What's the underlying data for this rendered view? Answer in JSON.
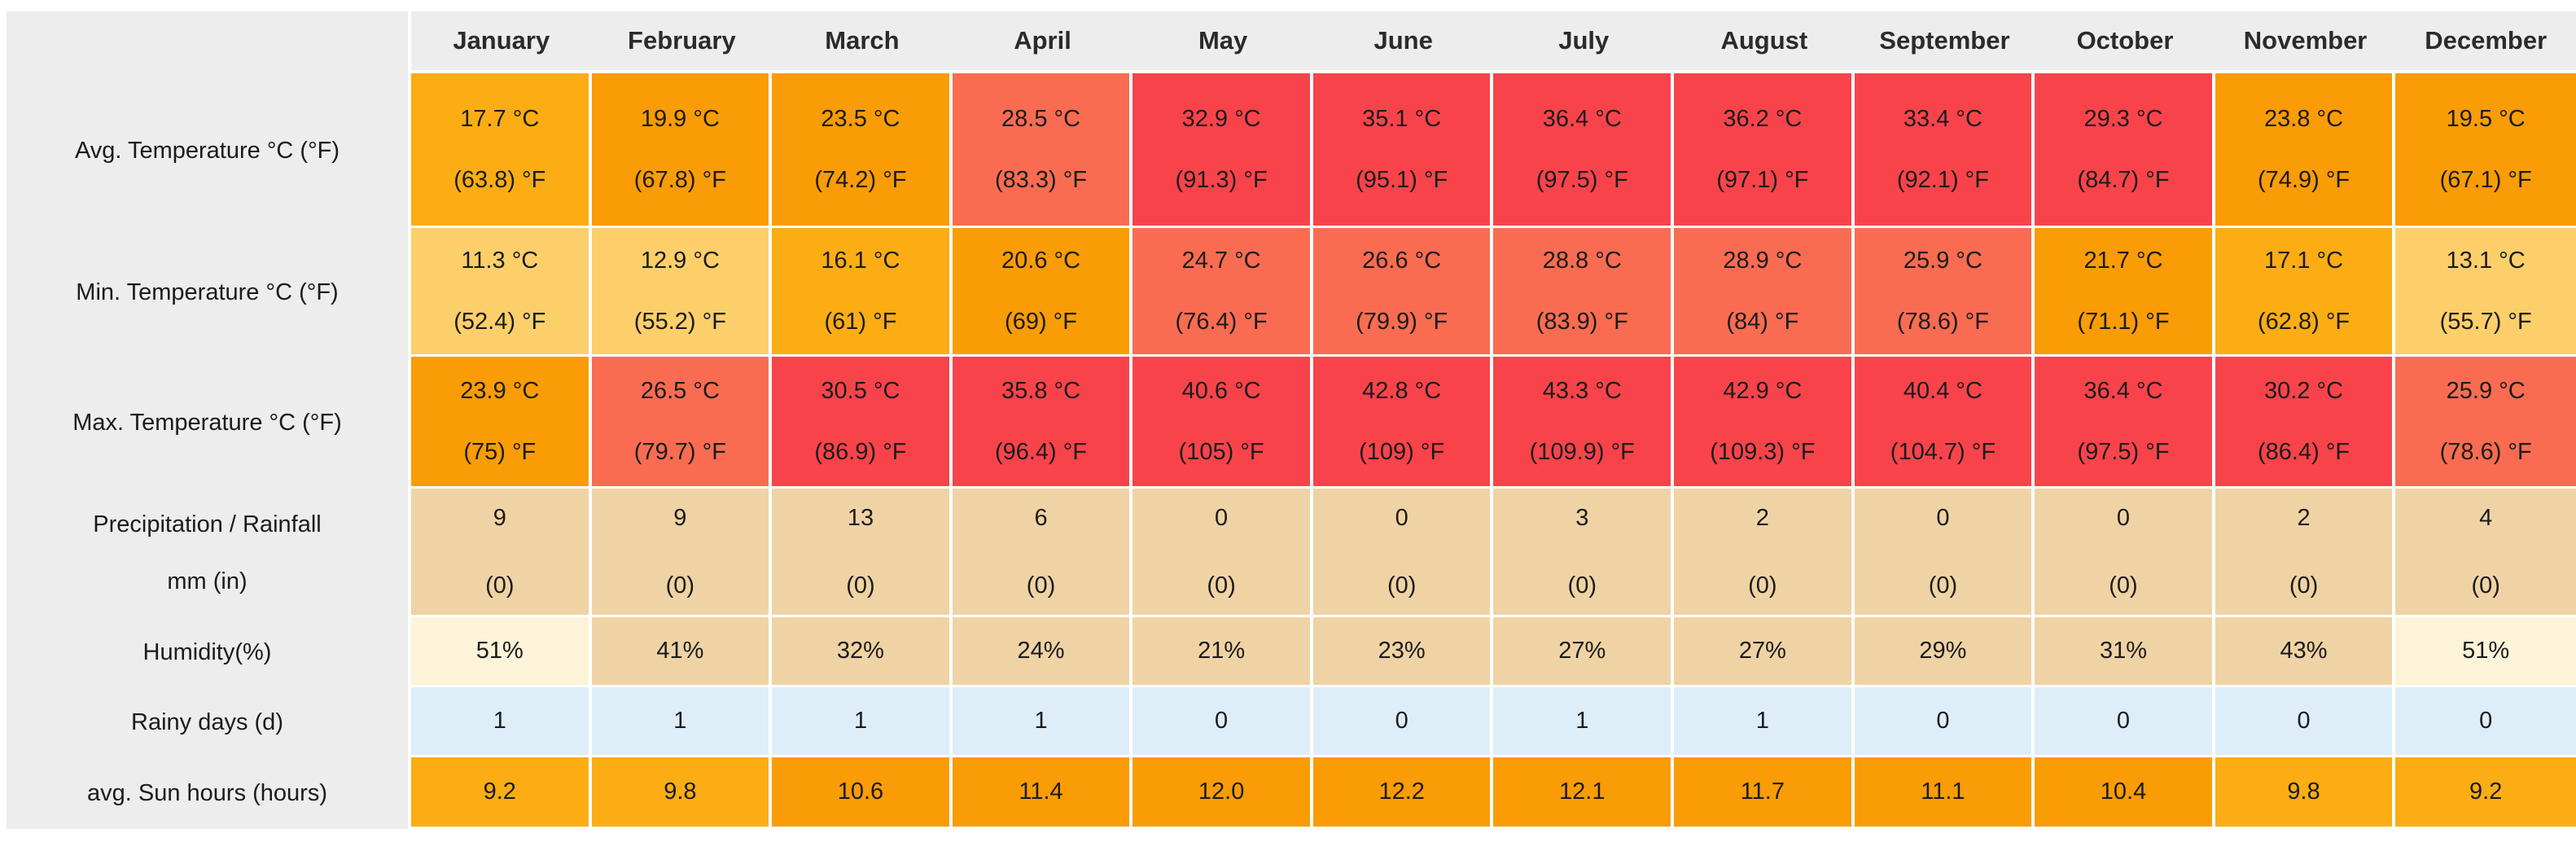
{
  "palette": {
    "header_bg": "#EDEDED",
    "label_bg": "#EDEDED",
    "cell_text": "#1B1B1B",
    "level1": "#FDCF6A",
    "level2": "#FCAD14",
    "level3": "#F99C06",
    "level4": "#F96C52",
    "level5": "#F9434B",
    "tan": "#F0D3A4",
    "cream": "#FCF3D8",
    "blue": "#DDEEF8"
  },
  "months": [
    "January",
    "February",
    "March",
    "April",
    "May",
    "June",
    "July",
    "August",
    "September",
    "October",
    "November",
    "December"
  ],
  "rows": [
    {
      "key": "avg-temperature",
      "label": "Avg. Temperature °C (°F)",
      "cells": [
        {
          "line1": "17.7 °C",
          "line2": "(63.8) °F",
          "color": "level2"
        },
        {
          "line1": "19.9 °C",
          "line2": "(67.8) °F",
          "color": "level3"
        },
        {
          "line1": "23.5 °C",
          "line2": "(74.2) °F",
          "color": "level3"
        },
        {
          "line1": "28.5 °C",
          "line2": "(83.3) °F",
          "color": "level4"
        },
        {
          "line1": "32.9 °C",
          "line2": "(91.3) °F",
          "color": "level5"
        },
        {
          "line1": "35.1 °C",
          "line2": "(95.1) °F",
          "color": "level5"
        },
        {
          "line1": "36.4 °C",
          "line2": "(97.5) °F",
          "color": "level5"
        },
        {
          "line1": "36.2 °C",
          "line2": "(97.1) °F",
          "color": "level5"
        },
        {
          "line1": "33.4 °C",
          "line2": "(92.1) °F",
          "color": "level5"
        },
        {
          "line1": "29.3 °C",
          "line2": "(84.7) °F",
          "color": "level5"
        },
        {
          "line1": "23.8 °C",
          "line2": "(74.9) °F",
          "color": "level3"
        },
        {
          "line1": "19.5 °C",
          "line2": "(67.1) °F",
          "color": "level3"
        }
      ]
    },
    {
      "key": "min-temperature",
      "label": "Min. Temperature °C (°F)",
      "cells": [
        {
          "line1": "11.3 °C",
          "line2": "(52.4) °F",
          "color": "level1"
        },
        {
          "line1": "12.9 °C",
          "line2": "(55.2) °F",
          "color": "level1"
        },
        {
          "line1": "16.1 °C",
          "line2": "(61) °F",
          "color": "level2"
        },
        {
          "line1": "20.6 °C",
          "line2": "(69) °F",
          "color": "level3"
        },
        {
          "line1": "24.7 °C",
          "line2": "(76.4) °F",
          "color": "level4"
        },
        {
          "line1": "26.6 °C",
          "line2": "(79.9) °F",
          "color": "level4"
        },
        {
          "line1": "28.8 °C",
          "line2": "(83.9) °F",
          "color": "level4"
        },
        {
          "line1": "28.9 °C",
          "line2": "(84) °F",
          "color": "level4"
        },
        {
          "line1": "25.9 °C",
          "line2": "(78.6) °F",
          "color": "level4"
        },
        {
          "line1": "21.7 °C",
          "line2": "(71.1) °F",
          "color": "level3"
        },
        {
          "line1": "17.1 °C",
          "line2": "(62.8) °F",
          "color": "level2"
        },
        {
          "line1": "13.1 °C",
          "line2": "(55.7) °F",
          "color": "level1"
        }
      ]
    },
    {
      "key": "max-temperature",
      "label": "Max. Temperature °C (°F)",
      "cells": [
        {
          "line1": "23.9 °C",
          "line2": "(75) °F",
          "color": "level3"
        },
        {
          "line1": "26.5 °C",
          "line2": "(79.7) °F",
          "color": "level4"
        },
        {
          "line1": "30.5 °C",
          "line2": "(86.9) °F",
          "color": "level5"
        },
        {
          "line1": "35.8 °C",
          "line2": "(96.4) °F",
          "color": "level5"
        },
        {
          "line1": "40.6 °C",
          "line2": "(105) °F",
          "color": "level5"
        },
        {
          "line1": "42.8 °C",
          "line2": "(109) °F",
          "color": "level5"
        },
        {
          "line1": "43.3 °C",
          "line2": "(109.9) °F",
          "color": "level5"
        },
        {
          "line1": "42.9 °C",
          "line2": "(109.3) °F",
          "color": "level5"
        },
        {
          "line1": "40.4 °C",
          "line2": "(104.7) °F",
          "color": "level5"
        },
        {
          "line1": "36.4 °C",
          "line2": "(97.5) °F",
          "color": "level5"
        },
        {
          "line1": "30.2 °C",
          "line2": "(86.4) °F",
          "color": "level5"
        },
        {
          "line1": "25.9 °C",
          "line2": "(78.6) °F",
          "color": "level4"
        }
      ]
    },
    {
      "key": "precipitation",
      "label": "Precipitation / Rainfall",
      "label2": "mm (in)",
      "cells": [
        {
          "line1": "9",
          "line2": "(0)",
          "color": "tan"
        },
        {
          "line1": "9",
          "line2": "(0)",
          "color": "tan"
        },
        {
          "line1": "13",
          "line2": "(0)",
          "color": "tan"
        },
        {
          "line1": "6",
          "line2": "(0)",
          "color": "tan"
        },
        {
          "line1": "0",
          "line2": "(0)",
          "color": "tan"
        },
        {
          "line1": "0",
          "line2": "(0)",
          "color": "tan"
        },
        {
          "line1": "3",
          "line2": "(0)",
          "color": "tan"
        },
        {
          "line1": "2",
          "line2": "(0)",
          "color": "tan"
        },
        {
          "line1": "0",
          "line2": "(0)",
          "color": "tan"
        },
        {
          "line1": "0",
          "line2": "(0)",
          "color": "tan"
        },
        {
          "line1": "2",
          "line2": "(0)",
          "color": "tan"
        },
        {
          "line1": "4",
          "line2": "(0)",
          "color": "tan"
        }
      ]
    },
    {
      "key": "humidity",
      "label": "Humidity(%)",
      "cells": [
        {
          "value": "51%",
          "color": "cream"
        },
        {
          "value": "41%",
          "color": "tan"
        },
        {
          "value": "32%",
          "color": "tan"
        },
        {
          "value": "24%",
          "color": "tan"
        },
        {
          "value": "21%",
          "color": "tan"
        },
        {
          "value": "23%",
          "color": "tan"
        },
        {
          "value": "27%",
          "color": "tan"
        },
        {
          "value": "27%",
          "color": "tan"
        },
        {
          "value": "29%",
          "color": "tan"
        },
        {
          "value": "31%",
          "color": "tan"
        },
        {
          "value": "43%",
          "color": "tan"
        },
        {
          "value": "51%",
          "color": "cream"
        }
      ]
    },
    {
      "key": "rainy-days",
      "label": "Rainy days (d)",
      "cells": [
        {
          "value": "1",
          "color": "blue"
        },
        {
          "value": "1",
          "color": "blue"
        },
        {
          "value": "1",
          "color": "blue"
        },
        {
          "value": "1",
          "color": "blue"
        },
        {
          "value": "0",
          "color": "blue"
        },
        {
          "value": "0",
          "color": "blue"
        },
        {
          "value": "1",
          "color": "blue"
        },
        {
          "value": "1",
          "color": "blue"
        },
        {
          "value": "0",
          "color": "blue"
        },
        {
          "value": "0",
          "color": "blue"
        },
        {
          "value": "0",
          "color": "blue"
        },
        {
          "value": "0",
          "color": "blue"
        }
      ]
    },
    {
      "key": "sun-hours",
      "label": "avg. Sun hours (hours)",
      "cells": [
        {
          "value": "9.2",
          "color": "level2"
        },
        {
          "value": "9.8",
          "color": "level2"
        },
        {
          "value": "10.6",
          "color": "level3"
        },
        {
          "value": "11.4",
          "color": "level3"
        },
        {
          "value": "12.0",
          "color": "level3"
        },
        {
          "value": "12.2",
          "color": "level3"
        },
        {
          "value": "12.1",
          "color": "level3"
        },
        {
          "value": "11.7",
          "color": "level3"
        },
        {
          "value": "11.1",
          "color": "level3"
        },
        {
          "value": "10.4",
          "color": "level3"
        },
        {
          "value": "9.8",
          "color": "level2"
        },
        {
          "value": "9.2",
          "color": "level2"
        }
      ]
    }
  ],
  "chart_data": {
    "type": "table",
    "categories": [
      "January",
      "February",
      "March",
      "April",
      "May",
      "June",
      "July",
      "August",
      "September",
      "October",
      "November",
      "December"
    ],
    "series": [
      {
        "name": "Avg. Temperature °C",
        "values": [
          17.7,
          19.9,
          23.5,
          28.5,
          32.9,
          35.1,
          36.4,
          36.2,
          33.4,
          29.3,
          23.8,
          19.5
        ]
      },
      {
        "name": "Avg. Temperature °F",
        "values": [
          63.8,
          67.8,
          74.2,
          83.3,
          91.3,
          95.1,
          97.5,
          97.1,
          92.1,
          84.7,
          74.9,
          67.1
        ]
      },
      {
        "name": "Min. Temperature °C",
        "values": [
          11.3,
          12.9,
          16.1,
          20.6,
          24.7,
          26.6,
          28.8,
          28.9,
          25.9,
          21.7,
          17.1,
          13.1
        ]
      },
      {
        "name": "Min. Temperature °F",
        "values": [
          52.4,
          55.2,
          61,
          69,
          76.4,
          79.9,
          83.9,
          84,
          78.6,
          71.1,
          62.8,
          55.7
        ]
      },
      {
        "name": "Max. Temperature °C",
        "values": [
          23.9,
          26.5,
          30.5,
          35.8,
          40.6,
          42.8,
          43.3,
          42.9,
          40.4,
          36.4,
          30.2,
          25.9
        ]
      },
      {
        "name": "Max. Temperature °F",
        "values": [
          75,
          79.7,
          86.9,
          96.4,
          105,
          109,
          109.9,
          109.3,
          104.7,
          97.5,
          86.4,
          78.6
        ]
      },
      {
        "name": "Precipitation / Rainfall mm",
        "values": [
          9,
          9,
          13,
          6,
          0,
          0,
          3,
          2,
          0,
          0,
          2,
          4
        ]
      },
      {
        "name": "Precipitation / Rainfall in",
        "values": [
          0,
          0,
          0,
          0,
          0,
          0,
          0,
          0,
          0,
          0,
          0,
          0
        ]
      },
      {
        "name": "Humidity %",
        "values": [
          51,
          41,
          32,
          24,
          21,
          23,
          27,
          27,
          29,
          31,
          43,
          51
        ]
      },
      {
        "name": "Rainy days (d)",
        "values": [
          1,
          1,
          1,
          1,
          0,
          0,
          1,
          1,
          0,
          0,
          0,
          0
        ]
      },
      {
        "name": "avg. Sun hours (hours)",
        "values": [
          9.2,
          9.8,
          10.6,
          11.4,
          12.0,
          12.2,
          12.1,
          11.7,
          11.1,
          10.4,
          9.8,
          9.2
        ]
      }
    ],
    "title": "",
    "legend_position": "none",
    "grid": false
  }
}
